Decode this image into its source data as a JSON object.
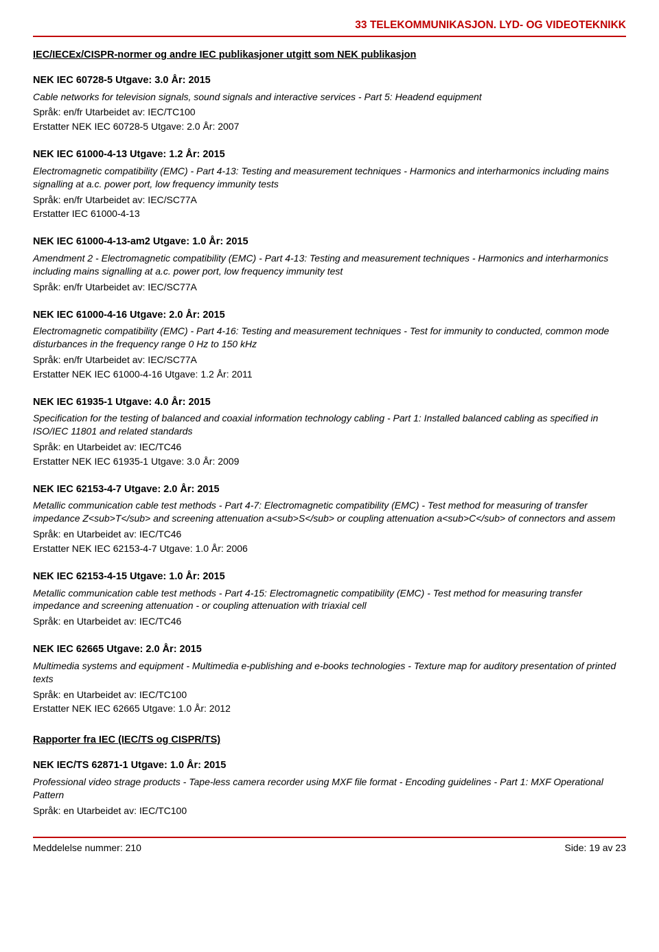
{
  "header": {
    "title": "33  TELEKOMMUNIKASJON. LYD- OG VIDEOTEKNIKK"
  },
  "section_heading": "IEC/IECEx/CISPR-normer og andre IEC publikasjoner utgitt som NEK publikasjon",
  "entries": [
    {
      "title": "NEK IEC 60728-5   Utgave: 3.0   År: 2015",
      "desc": "Cable networks for television signals, sound signals and interactive services - Part 5: Headend equipment",
      "meta": "Språk: en/fr   Utarbeidet av: IEC/TC100",
      "replace": "Erstatter NEK IEC 60728-5 Utgave: 2.0 År: 2007"
    },
    {
      "title": "NEK IEC 61000-4-13   Utgave: 1.2   År: 2015",
      "desc": "Electromagnetic compatibility (EMC) - Part 4-13: Testing and    measurement techniques - Harmonics and interharmonics including mains signalling at a.c. power port, low frequency immunity tests",
      "meta": "Språk: en/fr   Utarbeidet av: IEC/SC77A",
      "replace": "Erstatter IEC 61000-4-13"
    },
    {
      "title": "NEK IEC 61000-4-13-am2   Utgave: 1.0   År: 2015",
      "desc": "Amendment 2 - Electromagnetic compatibility (EMC) - Part 4-13: Testing and measurement techniques - Harmonics and interharmonics including mains signalling at a.c. power port, low frequency immunity test",
      "meta": "Språk: en/fr   Utarbeidet av: IEC/SC77A",
      "replace": ""
    },
    {
      "title": "NEK IEC 61000-4-16   Utgave: 2.0   År: 2015",
      "desc": "Electromagnetic compatibility (EMC) - Part 4-16: Testing and measurement techniques - Test for immunity to conducted, common mode disturbances in the frequency range 0 Hz to 150 kHz",
      "meta": "Språk: en/fr   Utarbeidet av: IEC/SC77A",
      "replace": "Erstatter NEK IEC 61000-4-16 Utgave: 1.2 År: 2011"
    },
    {
      "title": "NEK IEC 61935-1   Utgave: 4.0   År: 2015",
      "desc": "Specification for the testing of balanced and coaxial information technology cabling - Part 1: Installed balanced cabling as specified in ISO/IEC 11801 and related standards",
      "meta": "Språk: en   Utarbeidet av: IEC/TC46",
      "replace": "Erstatter NEK IEC 61935-1 Utgave: 3.0 År: 2009"
    },
    {
      "title": "NEK IEC 62153-4-7   Utgave: 2.0   År: 2015",
      "desc": "Metallic communication cable test methods - Part 4-7: Electromagnetic compatibility (EMC) - Test method for measuring of transfer impedance Z<sub>T</sub> and screening attenuation a<sub>S</sub> or coupling attenuation a<sub>C</sub> of connectors and assem",
      "meta": "Språk: en   Utarbeidet av: IEC/TC46",
      "replace": "Erstatter NEK IEC 62153-4-7 Utgave: 1.0 År: 2006"
    },
    {
      "title": "NEK IEC 62153-4-15   Utgave: 1.0   År: 2015",
      "desc": "Metallic communication cable test methods - Part 4-15: Electromagnetic compatibility (EMC) - Test method for measuring transfer impedance and screening attenuation - or coupling attenuation with triaxial cell",
      "meta": "Språk: en   Utarbeidet av: IEC/TC46",
      "replace": ""
    },
    {
      "title": "NEK IEC 62665   Utgave: 2.0   År: 2015",
      "desc": "Multimedia systems and equipment - Multimedia e-publishing and e-books technologies - Texture map for auditory presentation of printed texts",
      "meta": "Språk: en   Utarbeidet av: IEC/TC100",
      "replace": "Erstatter NEK IEC 62665 Utgave: 1.0 År: 2012"
    }
  ],
  "sub_section_heading": "Rapporter fra IEC (IEC/TS og CISPR/TS)",
  "sub_entries": [
    {
      "title": "NEK IEC/TS 62871-1   Utgave: 1.0   År: 2015",
      "desc": "Professional video strage products - Tape-less camera recorder using MXF file format - Encoding guidelines - Part 1: MXF Operational Pattern",
      "meta": "Språk: en   Utarbeidet av: IEC/TC100",
      "replace": ""
    }
  ],
  "footer": {
    "left": "Meddelelse nummer: 210",
    "right": "Side: 19 av 23"
  }
}
